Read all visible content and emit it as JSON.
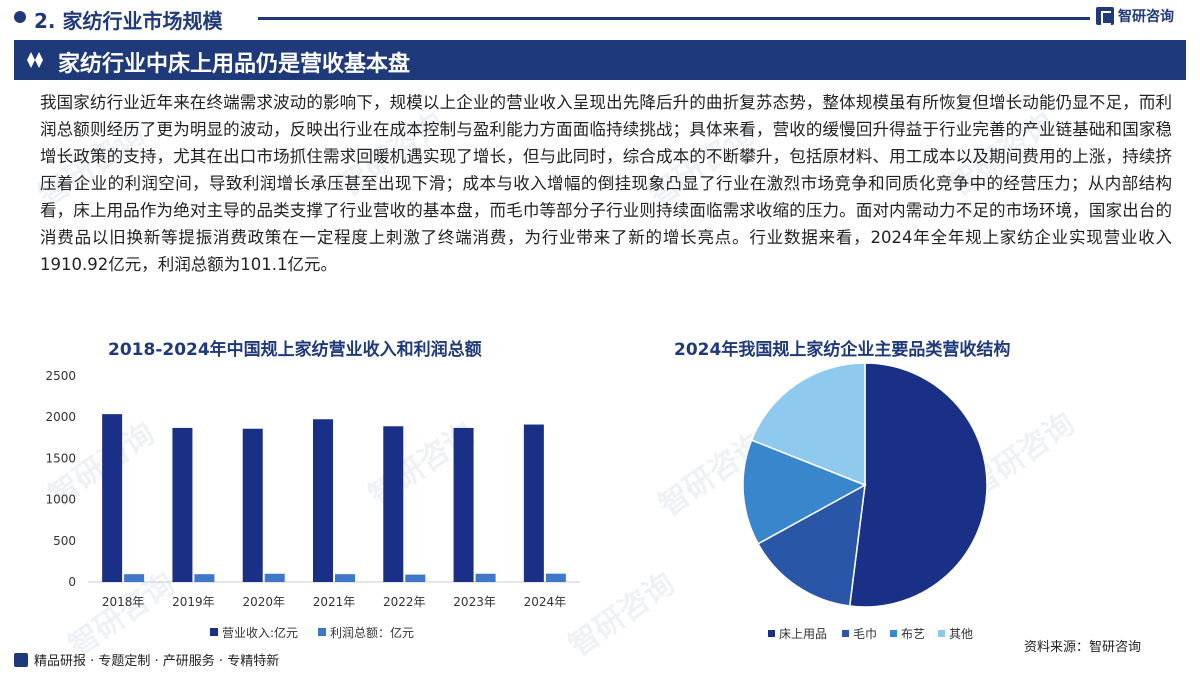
{
  "header": {
    "section_title": "2. 家纺行业市场规模",
    "brand": "智研咨询"
  },
  "banner": {
    "title": "家纺行业中床上用品仍是营收基本盘"
  },
  "body_text": "我国家纺行业近年来在终端需求波动的影响下，规模以上企业的营业收入呈现出先降后升的曲折复苏态势，整体规模虽有所恢复但增长动能仍显不足，而利润总额则经历了更为明显的波动，反映出行业在成本控制与盈利能力方面面临持续挑战；具体来看，营收的缓慢回升得益于行业完善的产业链基础和国家稳增长政策的支持，尤其在出口市场抓住需求回暖机遇实现了增长，但与此同时，综合成本的不断攀升，包括原材料、用工成本以及期间费用的上涨，持续挤压着企业的利润空间，导致利润增长承压甚至出现下滑；成本与收入增幅的倒挂现象凸显了行业在激烈市场竞争和同质化竞争中的经营压力；从内部结构看，床上用品作为绝对主导的品类支撑了行业营收的基本盘，而毛巾等部分子行业则持续面临需求收缩的压力。面对内需动力不足的市场环境，国家出台的消费品以旧换新等提振消费政策在一定程度上刺激了终端消费，为行业带来了新的增长亮点。行业数据来看，2024年全年规上家纺企业实现营业收入1910.92亿元，利润总额为101.1亿元。",
  "footer": {
    "text": "精品研报 · 专题定制 · 产研服务 · 专精特新",
    "source": "资料来源：智研咨询"
  },
  "colors": {
    "navy": "#1f3a7a",
    "bar_revenue": "#1a2f86",
    "bar_profit": "#3f78c8"
  },
  "chart_data": [
    {
      "type": "bar",
      "title": "2018-2024年中国规上家纺营业收入和利润总额",
      "categories": [
        "2018年",
        "2019年",
        "2020年",
        "2021年",
        "2022年",
        "2023年",
        "2024年"
      ],
      "series": [
        {
          "name": "营业收入:亿元",
          "values": [
            2037,
            1870,
            1860,
            1975,
            1890,
            1870,
            1911
          ],
          "color": "#1a2f86"
        },
        {
          "name": "利润总额：亿元",
          "values": [
            95,
            95,
            100,
            95,
            90,
            100,
            101
          ],
          "color": "#3f78c8"
        }
      ],
      "ylim": [
        0,
        2500
      ],
      "yticks": [
        0,
        500,
        1000,
        1500,
        2000,
        2500
      ],
      "legend": "bottom",
      "grid": false
    },
    {
      "type": "pie",
      "title": "2024年我国规上家纺企业主要品类营收结构",
      "slices": [
        {
          "name": "床上用品",
          "value": 52,
          "color": "#1a2f86"
        },
        {
          "name": "毛巾",
          "value": 15,
          "color": "#2a56a8"
        },
        {
          "name": "布艺",
          "value": 14,
          "color": "#3a86cc"
        },
        {
          "name": "其他",
          "value": 19,
          "color": "#8ec9ee"
        }
      ],
      "legend": "bottom"
    }
  ]
}
